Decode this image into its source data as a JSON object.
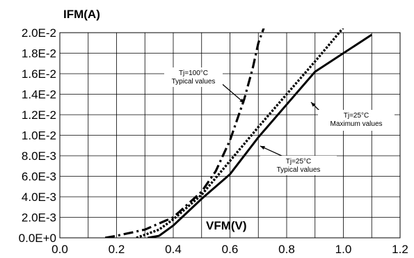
{
  "chart_data": {
    "type": "line",
    "xlabel": "VFM(V)",
    "ylabel": "IFM(A)",
    "xlim": [
      0.0,
      1.2
    ],
    "ylim": [
      0.0,
      0.02
    ],
    "x_ticks": [
      0.0,
      0.2,
      0.4,
      0.6,
      0.8,
      1.0,
      1.2
    ],
    "x_tick_labels": [
      "0.0",
      "0.2",
      "0.4",
      "0.6",
      "0.8",
      "1.0",
      "1.2"
    ],
    "y_ticks": [
      0.0,
      0.002,
      0.004,
      0.006,
      0.008,
      0.01,
      0.012,
      0.014,
      0.016,
      0.018,
      0.02
    ],
    "y_tick_labels": [
      "0.0E+0",
      "2.0E-3",
      "4.0E-3",
      "6.0E-3",
      "8.0E-3",
      "1.0E-2",
      "1.2E-2",
      "1.4E-2",
      "1.6E-2",
      "1.8E-2",
      "2.0E-2"
    ],
    "grid": true,
    "x_minor_gridlines_per_major": 2,
    "y_minor_gridlines_per_major": 1,
    "series": [
      {
        "style": "dash-dot",
        "color": "#000000",
        "points": [
          [
            0.16,
            0.0
          ],
          [
            0.2,
            0.0002
          ],
          [
            0.3,
            0.0008
          ],
          [
            0.4,
            0.002
          ],
          [
            0.5,
            0.0045
          ],
          [
            0.55,
            0.0065
          ],
          [
            0.6,
            0.0095
          ],
          [
            0.65,
            0.0135
          ],
          [
            0.68,
            0.0165
          ],
          [
            0.7,
            0.019
          ],
          [
            0.72,
            0.0205
          ]
        ]
      },
      {
        "style": "dotted",
        "color": "#000000",
        "points": [
          [
            0.27,
            0.0
          ],
          [
            0.35,
            0.0008
          ],
          [
            0.4,
            0.0018
          ],
          [
            0.5,
            0.0042
          ],
          [
            0.6,
            0.0075
          ],
          [
            0.7,
            0.0108
          ],
          [
            0.8,
            0.014
          ],
          [
            0.9,
            0.0172
          ],
          [
            0.97,
            0.0195
          ],
          [
            1.0,
            0.0205
          ]
        ]
      },
      {
        "style": "solid",
        "color": "#000000",
        "points": [
          [
            0.31,
            0.0
          ],
          [
            0.35,
            0.0002
          ],
          [
            0.4,
            0.0012
          ],
          [
            0.45,
            0.0025
          ],
          [
            0.5,
            0.0038
          ],
          [
            0.6,
            0.0062
          ],
          [
            0.7,
            0.0098
          ],
          [
            0.8,
            0.013
          ],
          [
            0.9,
            0.0162
          ],
          [
            1.0,
            0.018
          ],
          [
            1.1,
            0.0198
          ]
        ]
      }
    ],
    "annotations": [
      {
        "lines": [
          "Tj=100°C",
          "Typical values"
        ]
      },
      {
        "lines": [
          "Tj=25°C",
          "Maximum values"
        ]
      },
      {
        "lines": [
          "Tj=25°C",
          "Typical values"
        ]
      }
    ]
  }
}
